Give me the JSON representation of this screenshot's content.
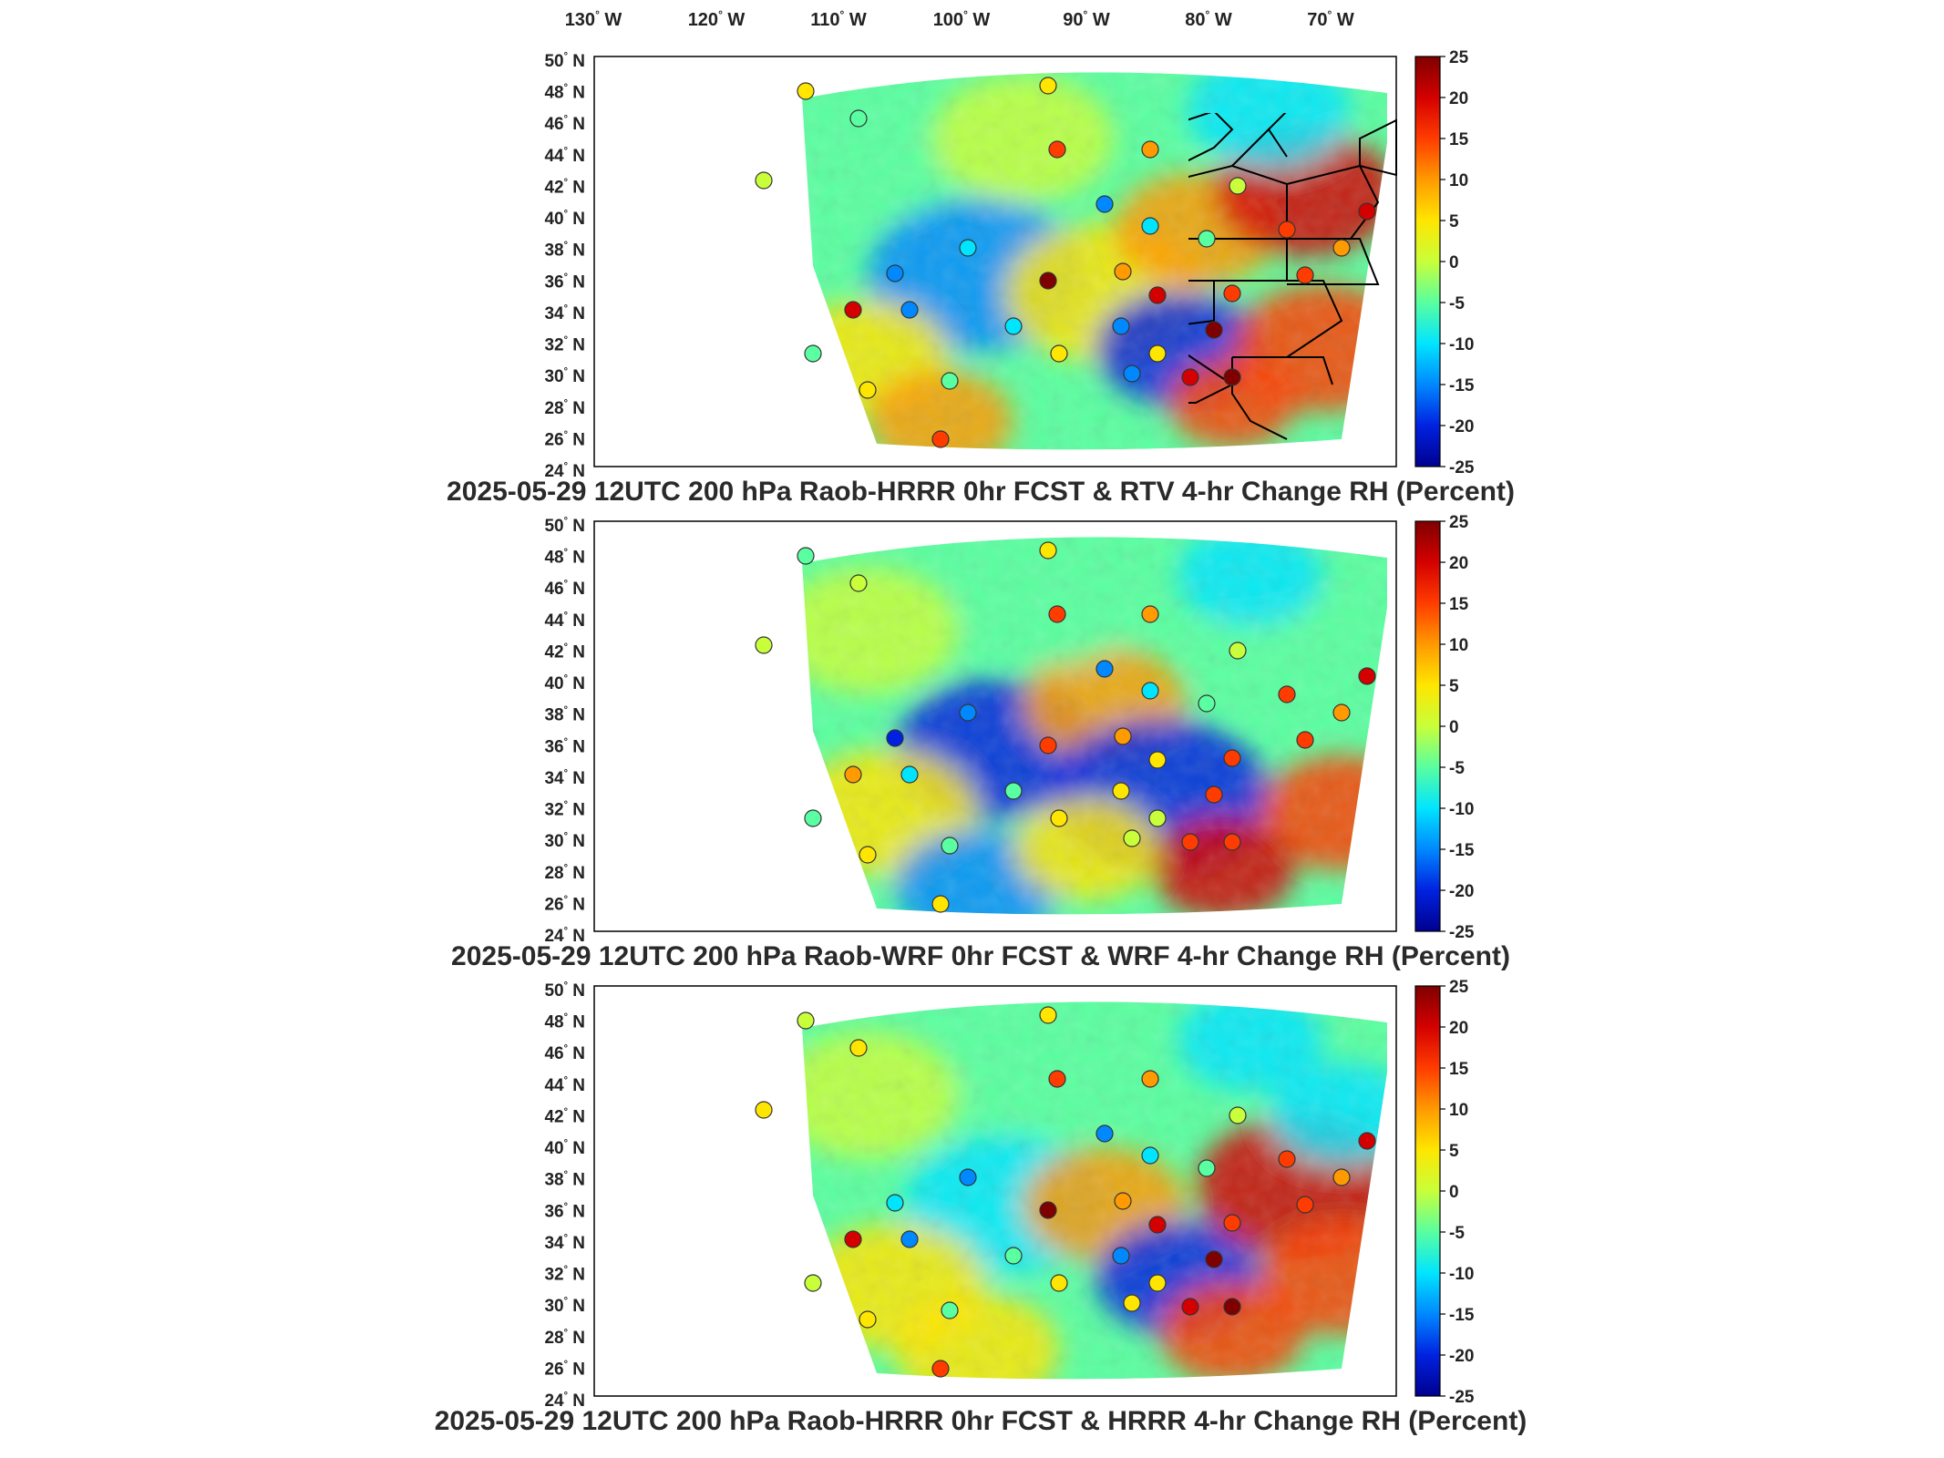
{
  "lon_labels": [
    "130",
    "120",
    "110",
    "100",
    "90",
    "80",
    "70"
  ],
  "lon_suffix": "W",
  "lat_labels": [
    "50",
    "48",
    "46",
    "44",
    "42",
    "40",
    "38",
    "36",
    "34",
    "32",
    "30",
    "28",
    "26",
    "24"
  ],
  "lat_suffix": "N",
  "colorbar": {
    "ticks": [
      "25",
      "20",
      "15",
      "10",
      "5",
      "0",
      "-5",
      "-10",
      "-15",
      "-20",
      "-25"
    ],
    "colors": [
      "#7f0000",
      "#d40000",
      "#ff3c00",
      "#ff9a00",
      "#ffe600",
      "#c8ff3a",
      "#59ffa0",
      "#00e5ff",
      "#0088ff",
      "#0022e0",
      "#00008f"
    ]
  },
  "panels": [
    {
      "title": "2025-05-29 12UTC 200 hPa Raob-HRRR 0hr FCST & RTV 4-hr Change RH (Percent)"
    },
    {
      "title": "2025-05-29 12UTC 200 hPa Raob-WRF 0hr FCST & WRF 4-hr Change RH (Percent)"
    },
    {
      "title": "2025-05-29 12UTC 200 hPa Raob-HRRR 0hr FCST & HRRR 4-hr Change RH (Percent)"
    }
  ]
}
